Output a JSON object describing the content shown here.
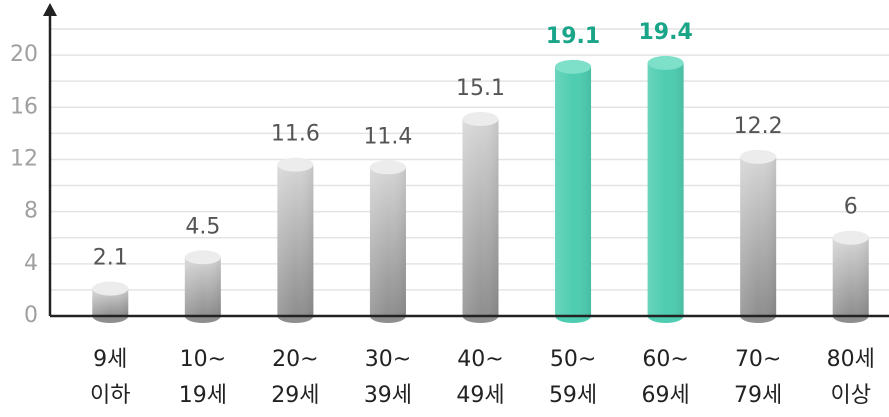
{
  "chart_data": {
    "type": "bar",
    "categories": [
      [
        "9세",
        "이하"
      ],
      [
        "10~",
        "19세"
      ],
      [
        "20~",
        "29세"
      ],
      [
        "30~",
        "39세"
      ],
      [
        "40~",
        "49세"
      ],
      [
        "50~",
        "59세"
      ],
      [
        "60~",
        "69세"
      ],
      [
        "70~",
        "79세"
      ],
      [
        "80세",
        "이상"
      ]
    ],
    "values": [
      2.1,
      4.5,
      11.6,
      11.4,
      15.1,
      19.1,
      19.4,
      12.2,
      6
    ],
    "colors": [
      "gray",
      "gray",
      "gray",
      "gray",
      "gray",
      "#4ecdb0",
      "#4ecdb0",
      "gray",
      "gray"
    ],
    "label_colors": [
      "#555555",
      "#555555",
      "#555555",
      "#555555",
      "#555555",
      "#1aa488",
      "#1aa488",
      "#555555",
      "#555555"
    ],
    "ylim": [
      0,
      22
    ],
    "yticks": [
      0,
      4,
      8,
      12,
      16,
      20
    ],
    "minor_yticks": [
      2,
      6,
      10,
      14,
      18,
      22
    ],
    "grid": true
  }
}
